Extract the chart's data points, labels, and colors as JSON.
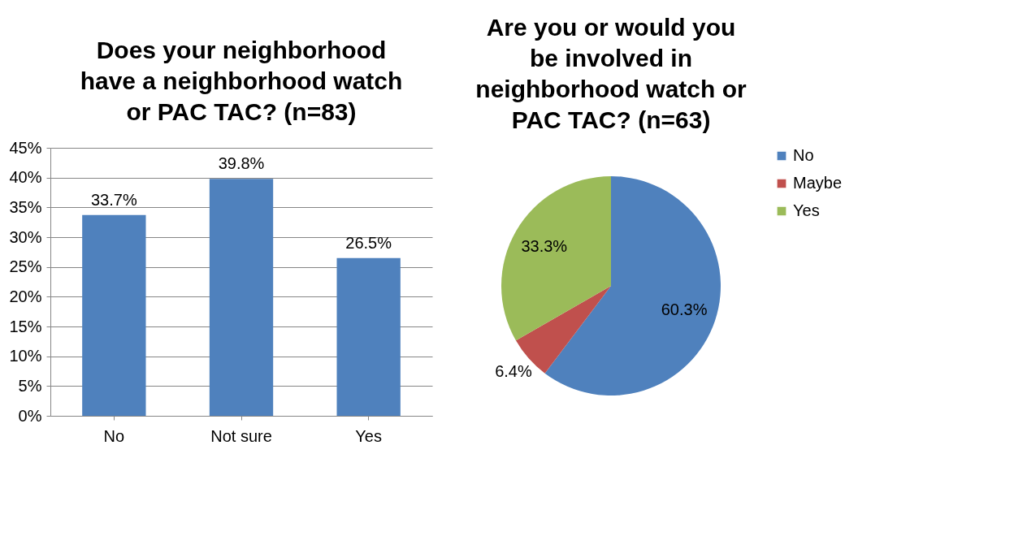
{
  "chart_data": [
    {
      "type": "bar",
      "title": "Does your neighborhood have a neighborhood watch or PAC TAC? (n=83)",
      "categories": [
        "No",
        "Not sure",
        "Yes"
      ],
      "values": [
        33.7,
        39.8,
        26.5
      ],
      "color": "#4f81bd",
      "value_labels": [
        "33.7%",
        "39.8%",
        "26.5%"
      ],
      "ylim": [
        0,
        45
      ],
      "yticks": [
        {
          "value": 0,
          "label": "0%"
        },
        {
          "value": 5,
          "label": "5%"
        },
        {
          "value": 10,
          "label": "10%"
        },
        {
          "value": 15,
          "label": "15%"
        },
        {
          "value": 20,
          "label": "20%"
        },
        {
          "value": 25,
          "label": "25%"
        },
        {
          "value": 30,
          "label": "30%"
        },
        {
          "value": 35,
          "label": "35%"
        },
        {
          "value": 40,
          "label": "40%"
        },
        {
          "value": 45,
          "label": "45%"
        }
      ],
      "grid": "y"
    },
    {
      "type": "pie",
      "title": "Are you or would you be involved in neighborhood watch or PAC TAC? (n=63)",
      "categories": [
        "No",
        "Maybe",
        "Yes"
      ],
      "values": [
        60.3,
        6.4,
        33.3
      ],
      "colors": [
        "#4f81bd",
        "#c0504d",
        "#9bbb59"
      ],
      "value_labels": [
        "60.3%",
        "6.4%",
        "33.3%"
      ],
      "legend": "right"
    }
  ]
}
